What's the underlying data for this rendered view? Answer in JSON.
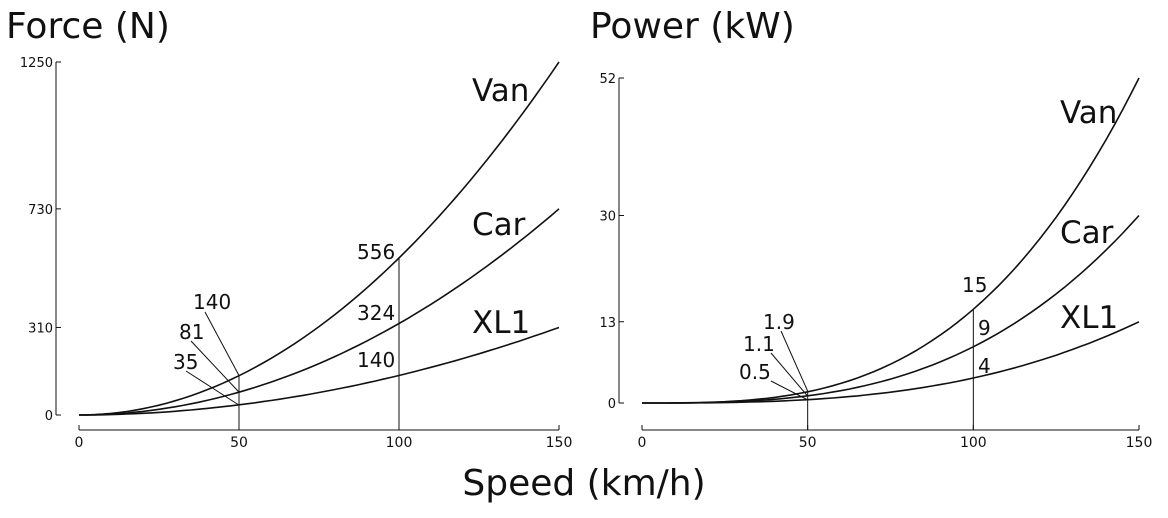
{
  "figure": {
    "xlabel": "Speed (km/h)"
  },
  "chart_data": [
    {
      "type": "line",
      "title": "Force (N)",
      "xlabel": "Speed (km/h)",
      "ylabel": "Force (N)",
      "xlim": [
        0,
        150
      ],
      "ylim": [
        0,
        1250
      ],
      "xticks": [
        0,
        50,
        100,
        150
      ],
      "yticks": [
        0,
        310,
        730,
        1250
      ],
      "grid": false,
      "series": [
        {
          "name": "Van",
          "x": [
            0,
            50,
            100,
            150
          ],
          "y": [
            0,
            140,
            556,
            1250
          ]
        },
        {
          "name": "Car",
          "x": [
            0,
            50,
            100,
            150
          ],
          "y": [
            0,
            81,
            324,
            730
          ]
        },
        {
          "name": "XL1",
          "x": [
            0,
            50,
            100,
            150
          ],
          "y": [
            0,
            35,
            140,
            310
          ]
        }
      ],
      "annotations": [
        {
          "x": 50,
          "labels": [
            "140",
            "81",
            "35"
          ],
          "values": [
            140,
            81,
            35
          ]
        },
        {
          "x": 100,
          "labels": [
            "556",
            "324",
            "140"
          ],
          "values": [
            556,
            324,
            140
          ]
        }
      ]
    },
    {
      "type": "line",
      "title": "Power (kW)",
      "xlabel": "Speed (km/h)",
      "ylabel": "Power (kW)",
      "xlim": [
        0,
        150
      ],
      "ylim": [
        0,
        52
      ],
      "xticks": [
        0,
        50,
        100,
        150
      ],
      "yticks": [
        0,
        13,
        30,
        52
      ],
      "grid": false,
      "series": [
        {
          "name": "Van",
          "x": [
            0,
            50,
            100,
            150
          ],
          "y": [
            0,
            1.9,
            15,
            52
          ]
        },
        {
          "name": "Car",
          "x": [
            0,
            50,
            100,
            150
          ],
          "y": [
            0,
            1.1,
            9,
            30
          ]
        },
        {
          "name": "XL1",
          "x": [
            0,
            50,
            100,
            150
          ],
          "y": [
            0,
            0.5,
            4,
            13
          ]
        }
      ],
      "annotations": [
        {
          "x": 50,
          "labels": [
            "1.9",
            "1.1",
            "0.5"
          ],
          "values": [
            1.9,
            1.1,
            0.5
          ]
        },
        {
          "x": 100,
          "labels": [
            "15",
            "9",
            "4"
          ],
          "values": [
            15,
            9,
            4
          ]
        }
      ]
    }
  ]
}
